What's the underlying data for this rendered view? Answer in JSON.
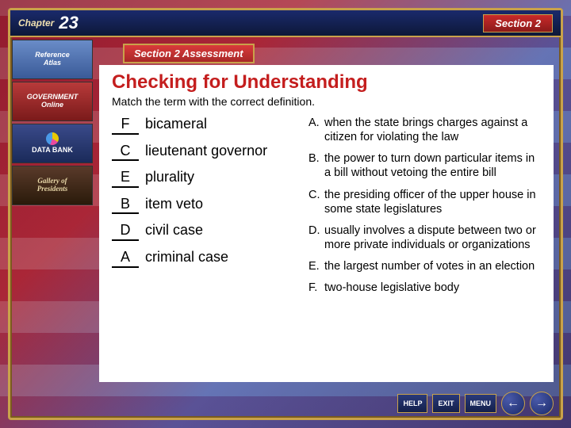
{
  "topbar": {
    "chapter_label": "Chapter",
    "chapter_num": "23",
    "section_label": "Section 2"
  },
  "section_tag": "Section 2 Assessment",
  "sidebar": {
    "atlas_l1": "Reference",
    "atlas_l2": "Atlas",
    "gov_l1": "GOVERNMENT",
    "gov_l2": "Online",
    "data_l1": "DATA",
    "data_l2": "BANK",
    "gallery_l1": "Gallery of",
    "gallery_l2": "Presidents"
  },
  "content": {
    "title": "Checking for Understanding",
    "instr": "Match the term with the correct definition.",
    "terms": [
      {
        "ans": "F",
        "text": "bicameral"
      },
      {
        "ans": "C",
        "text": "lieutenant governor"
      },
      {
        "ans": "E",
        "text": "plurality"
      },
      {
        "ans": "B",
        "text": "item veto"
      },
      {
        "ans": "D",
        "text": "civil case"
      },
      {
        "ans": "A",
        "text": "criminal case"
      }
    ],
    "defs": [
      {
        "l": "A.",
        "t": "when the state brings charges against a citizen for violating the law"
      },
      {
        "l": "B.",
        "t": "the power to turn down particular items in a bill without vetoing the entire bill"
      },
      {
        "l": "C.",
        "t": "the presiding officer of the upper house in some state legislatures"
      },
      {
        "l": "D.",
        "t": "usually involves a dispute between two or more private individuals or organizations"
      },
      {
        "l": "E.",
        "t": "the largest number of votes in an election"
      },
      {
        "l": "F.",
        "t": "two-house legislative body"
      }
    ]
  },
  "nav": {
    "help": "HELP",
    "exit": "EXIT",
    "menu": "MENU",
    "prev": "←",
    "next": "→"
  },
  "colors": {
    "title_color": "#c41e1e",
    "frame_gold": "#c9a24a",
    "topbar_bg": "#1a2a6c"
  }
}
